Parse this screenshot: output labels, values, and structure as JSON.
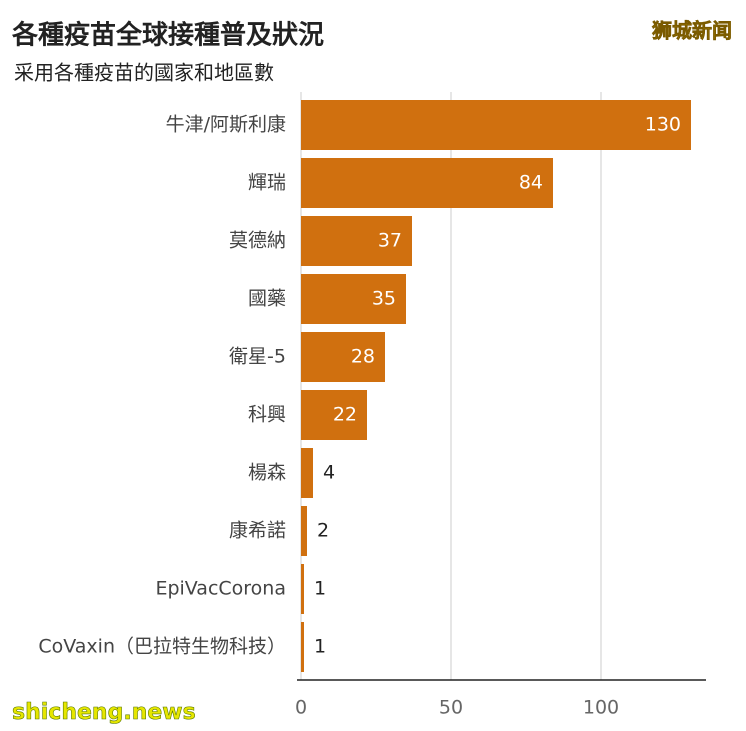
{
  "chart_data": {
    "type": "bar",
    "orientation": "horizontal",
    "title": "各種疫苗全球接種普及狀況",
    "subtitle": "采用各種疫苗的國家和地區數",
    "categories": [
      "牛津/阿斯利康",
      "輝瑞",
      "莫德納",
      "國藥",
      "衛星-5",
      "科興",
      "楊森",
      "康希諾",
      "EpiVacCorona",
      "CoVaxin（巴拉特生物科技）"
    ],
    "values": [
      130,
      84,
      37,
      35,
      28,
      22,
      4,
      2,
      1,
      1
    ],
    "color": "#d0700f",
    "xlim": [
      0,
      135
    ],
    "xticks": [
      0,
      50,
      100
    ],
    "grid": true
  },
  "watermarks": {
    "top": "狮城新闻",
    "bottom": "shicheng.news"
  }
}
